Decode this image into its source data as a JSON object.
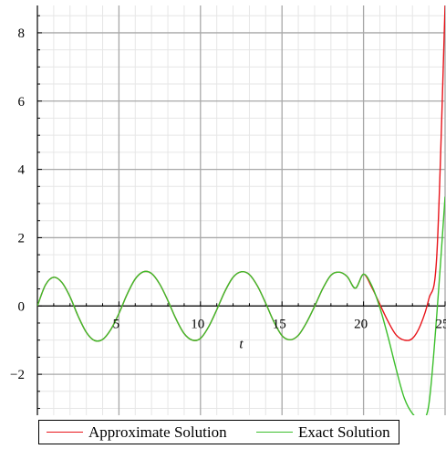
{
  "chart_data": {
    "type": "line",
    "title": "",
    "xlabel": "t",
    "ylabel": "",
    "xlim": [
      0,
      25
    ],
    "ylim": [
      -3.2,
      8.8
    ],
    "x_ticks": [
      5,
      10,
      15,
      20,
      25
    ],
    "x_tick_labels": [
      "5",
      "10",
      "15",
      "20",
      "25"
    ],
    "y_ticks": [
      -2,
      0,
      2,
      4,
      6,
      8
    ],
    "y_tick_labels": [
      "−2",
      "0",
      "2",
      "4",
      "6",
      "8"
    ],
    "grid": true,
    "legend_position": "bottom",
    "series": [
      {
        "name": "Approximate Solution",
        "color": "#e8141a",
        "x": [
          0,
          0.5,
          1,
          1.5,
          2,
          2.5,
          3,
          3.5,
          4,
          4.5,
          5,
          5.5,
          6,
          6.5,
          7,
          7.5,
          8,
          8.5,
          9,
          9.5,
          10,
          10.5,
          11,
          11.5,
          12,
          12.5,
          13,
          13.5,
          14,
          14.5,
          15,
          15.5,
          16,
          16.5,
          17,
          17.5,
          18,
          18.5,
          19,
          19.5,
          20,
          20.5,
          21,
          21.5,
          22,
          22.5,
          23,
          23.5,
          24,
          24.5,
          25
        ],
        "values": [
          0,
          0.62,
          0.84,
          0.69,
          0.27,
          -0.3,
          -0.77,
          -1.01,
          -0.98,
          -0.69,
          -0.22,
          0.34,
          0.79,
          1.0,
          0.95,
          0.64,
          0.16,
          -0.38,
          -0.81,
          -1.0,
          -0.95,
          -0.61,
          -0.11,
          0.43,
          0.84,
          1.0,
          0.92,
          0.58,
          0.08,
          -0.46,
          -0.87,
          -0.99,
          -0.86,
          -0.49,
          -0.01,
          0.51,
          0.9,
          0.99,
          0.86,
          0.52,
          0.93,
          0.55,
          0.05,
          -0.45,
          -0.85,
          -1.0,
          -0.95,
          -0.55,
          0.2,
          1.55,
          8.8
        ]
      },
      {
        "name": "Exact Solution",
        "color": "#3cbf2c",
        "x": [
          0,
          0.5,
          1,
          1.5,
          2,
          2.5,
          3,
          3.5,
          4,
          4.5,
          5,
          5.5,
          6,
          6.5,
          7,
          7.5,
          8,
          8.5,
          9,
          9.5,
          10,
          10.5,
          11,
          11.5,
          12,
          12.5,
          13,
          13.5,
          14,
          14.5,
          15,
          15.5,
          16,
          16.5,
          17,
          17.5,
          18,
          18.5,
          19,
          19.5,
          20,
          20.5,
          21,
          21.5,
          22,
          22.5,
          23,
          23.5,
          24,
          24.5,
          25
        ],
        "values": [
          0,
          0.62,
          0.84,
          0.69,
          0.27,
          -0.3,
          -0.77,
          -1.01,
          -0.98,
          -0.69,
          -0.22,
          0.34,
          0.79,
          1.0,
          0.95,
          0.64,
          0.16,
          -0.38,
          -0.81,
          -1.0,
          -0.95,
          -0.61,
          -0.11,
          0.43,
          0.84,
          1.0,
          0.92,
          0.58,
          0.08,
          -0.46,
          -0.87,
          -0.99,
          -0.86,
          -0.49,
          -0.01,
          0.51,
          0.9,
          0.99,
          0.86,
          0.52,
          0.93,
          0.6,
          -0.05,
          -0.9,
          -1.85,
          -2.7,
          -3.15,
          -3.3,
          -2.9,
          -0.2,
          3.2
        ]
      }
    ]
  }
}
